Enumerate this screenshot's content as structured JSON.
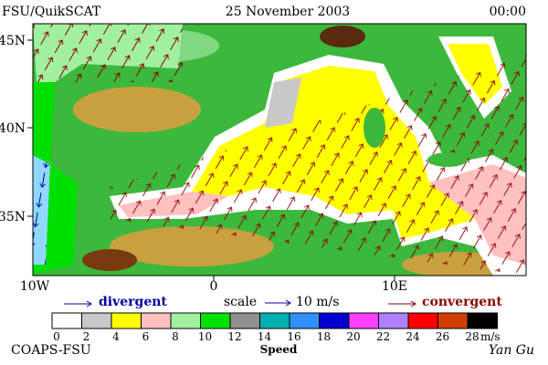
{
  "header": {
    "left": "FSU/QuikSCAT",
    "center": "25 November 2003",
    "right": "00:00"
  },
  "map": {
    "lat_labels": [
      "45N",
      "40N",
      "35N"
    ],
    "lon_labels": [
      "10W",
      "0",
      "10E"
    ]
  },
  "legend": {
    "divergent": "divergent",
    "scale": "scale",
    "scale_value": "10 m/s",
    "convergent": "convergent"
  },
  "colorbar": {
    "ticks": [
      "0",
      "2",
      "4",
      "6",
      "8",
      "10",
      "12",
      "14",
      "16",
      "18",
      "20",
      "22",
      "24",
      "26",
      "28"
    ],
    "unit": "m/s",
    "title": "Speed",
    "colors": [
      "#ffffff",
      "#c8c8c8",
      "#ffff00",
      "#ffc0c0",
      "#a0f0a0",
      "#00e000",
      "#909090",
      "#00b0b0",
      "#3090ff",
      "#0000d0",
      "#ff40ff",
      "#b080ff",
      "#ff0000",
      "#d04000",
      "#000000"
    ]
  },
  "footer": {
    "left": "COAPS-FSU",
    "right": "Yan Gu"
  }
}
